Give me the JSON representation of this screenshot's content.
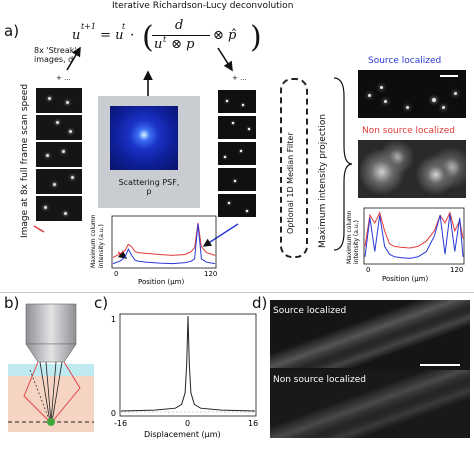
{
  "panel_a": {
    "label": "a)",
    "title": "Iterative Richardson-Lucy deconvolution",
    "equation": {
      "lhs": "u",
      "lhs_sup": "t+1",
      "eq": " = u",
      "u_sup": "t",
      "dot": " · ",
      "numerator": "d",
      "denominator_a": "u",
      "denominator_sup": "t",
      "denominator_b": " ⊗ p",
      "otimes": "⊗ p̂"
    },
    "streak_text": [
      "8x 'Streak'",
      "images, d"
    ],
    "plus_left": "+ ...",
    "plus_right": "+ ...",
    "left_vertical": "Image at 8x full frame scan speed",
    "psf_caption": [
      "Scattering PSF,",
      "p"
    ],
    "median_filter": "Optional 1D Median Filter",
    "max_proj": "Maximum intensity projection",
    "source_localized": "Source localized",
    "non_source_localized": "Non source localized",
    "colors": {
      "blue": "#2a39d6",
      "red": "#e23a3a"
    },
    "center_plot": {
      "ylabel": [
        "Maximum column",
        "intensity (a.u.)"
      ],
      "xlabel": "Position (μm)",
      "ticks": [
        "0",
        "120"
      ]
    },
    "right_plot": {
      "ylabel": [
        "Maximum column",
        "intensity (a.u.)"
      ],
      "xlabel": "Position (μm)",
      "ticks": [
        "0",
        "120"
      ]
    }
  },
  "panel_b": {
    "label": "b)"
  },
  "panel_c": {
    "label": "c)",
    "xlabel": "Displacement (μm)",
    "xticks": [
      "-16",
      "0",
      "16"
    ],
    "yticks": [
      "0",
      "1"
    ]
  },
  "panel_d": {
    "label": "d)",
    "source_localized": "Source localized",
    "non_source_localized": "Non source localized"
  },
  "chart_data": [
    {
      "type": "line",
      "title": "",
      "xlabel": "Position (μm)",
      "ylabel": "Maximum column intensity (a.u.)",
      "xlim": [
        0,
        120
      ],
      "series": [
        {
          "color": "#e23a3a",
          "x": [
            0,
            8,
            14,
            18,
            22,
            26,
            30,
            40,
            55,
            70,
            85,
            92,
            96,
            100,
            104,
            110,
            120
          ],
          "y": [
            0.18,
            0.25,
            0.32,
            0.45,
            0.4,
            0.3,
            0.28,
            0.26,
            0.24,
            0.22,
            0.24,
            0.3,
            0.38,
            0.9,
            0.4,
            0.28,
            0.22
          ]
        },
        {
          "color": "#2a39d6",
          "x": [
            0,
            8,
            14,
            18,
            22,
            26,
            30,
            40,
            55,
            70,
            85,
            92,
            96,
            100,
            104,
            110,
            120
          ],
          "y": [
            0.05,
            0.1,
            0.18,
            0.35,
            0.22,
            0.12,
            0.1,
            0.08,
            0.06,
            0.05,
            0.07,
            0.1,
            0.15,
            0.88,
            0.15,
            0.08,
            0.05
          ]
        }
      ]
    },
    {
      "type": "line",
      "title": "",
      "xlabel": "Position (μm)",
      "ylabel": "Maximum column intensity (a.u.)",
      "xlim": [
        0,
        120
      ],
      "series": [
        {
          "color": "#e23a3a",
          "x": [
            0,
            6,
            12,
            18,
            24,
            30,
            36,
            45,
            55,
            65,
            75,
            85,
            92,
            98,
            104,
            110,
            116,
            120
          ],
          "y": [
            0.3,
            0.9,
            0.75,
            0.95,
            0.6,
            0.35,
            0.3,
            0.28,
            0.27,
            0.3,
            0.4,
            0.6,
            0.9,
            0.75,
            0.95,
            0.6,
            0.8,
            0.45
          ]
        },
        {
          "color": "#2a39d6",
          "x": [
            0,
            6,
            12,
            18,
            24,
            30,
            36,
            45,
            55,
            65,
            75,
            85,
            92,
            98,
            104,
            110,
            116,
            120
          ],
          "y": [
            0.1,
            0.85,
            0.2,
            0.9,
            0.3,
            0.15,
            0.1,
            0.08,
            0.07,
            0.1,
            0.2,
            0.5,
            0.9,
            0.15,
            0.92,
            0.2,
            0.85,
            0.1
          ]
        }
      ]
    },
    {
      "type": "line",
      "title": "",
      "xlabel": "Displacement (μm)",
      "ylabel": "",
      "xlim": [
        -16,
        16
      ],
      "ylim": [
        0,
        1
      ],
      "series": [
        {
          "x": [
            -16,
            -8,
            -3,
            -1.5,
            -0.7,
            -0.3,
            0,
            0.3,
            0.7,
            1.5,
            3,
            8,
            16
          ],
          "y": [
            0.01,
            0.02,
            0.04,
            0.08,
            0.2,
            0.5,
            1.0,
            0.5,
            0.2,
            0.08,
            0.04,
            0.02,
            0.01
          ]
        }
      ]
    }
  ]
}
